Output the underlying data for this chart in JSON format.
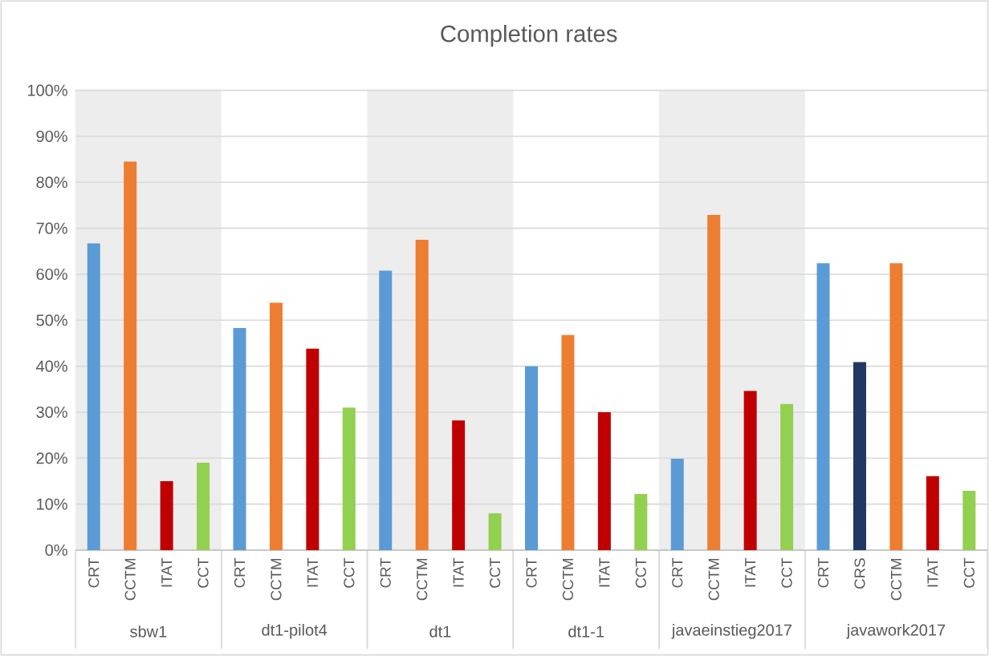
{
  "chart_data": {
    "type": "bar",
    "title": "Completion rates",
    "categories": [
      "CRT",
      "CCTM",
      "ITAT",
      "CCT",
      "CRT",
      "CCTM",
      "ITAT",
      "CCT",
      "CRT",
      "CCTM",
      "ITAT",
      "CCT",
      "CRT",
      "CCTM",
      "ITAT",
      "CCT",
      "CRT",
      "CCTM",
      "ITAT",
      "CCT",
      "CRT",
      "CRS",
      "CCTM",
      "ITAT",
      "CCT"
    ],
    "values": [
      66.7,
      84.5,
      15,
      19,
      48.3,
      53.8,
      43.8,
      31,
      60.8,
      67.5,
      28.2,
      8,
      40,
      46.8,
      30,
      12.2,
      19.9,
      72.9,
      34.6,
      31.8,
      62.4,
      40.9,
      62.4,
      16.1,
      12.9
    ],
    "colors": [
      "#5b9bd5",
      "#ed7d31",
      "#c00000",
      "#92d050",
      "#5b9bd5",
      "#ed7d31",
      "#c00000",
      "#92d050",
      "#5b9bd5",
      "#ed7d31",
      "#c00000",
      "#92d050",
      "#5b9bd5",
      "#ed7d31",
      "#c00000",
      "#92d050",
      "#5b9bd5",
      "#ed7d31",
      "#c00000",
      "#92d050",
      "#5b9bd5",
      "#1f3864",
      "#ed7d31",
      "#c00000",
      "#92d050"
    ],
    "ylim": [
      0,
      100
    ],
    "yticks": [
      {
        "value": 0,
        "label": "0%"
      },
      {
        "value": 10,
        "label": "10%"
      },
      {
        "value": 20,
        "label": "20%"
      },
      {
        "value": 30,
        "label": "30%"
      },
      {
        "value": 40,
        "label": "40%"
      },
      {
        "value": 50,
        "label": "50%"
      },
      {
        "value": 60,
        "label": "60%"
      },
      {
        "value": 70,
        "label": "70%"
      },
      {
        "value": 80,
        "label": "80%"
      },
      {
        "value": 90,
        "label": "90%"
      },
      {
        "value": 100,
        "label": "100%"
      }
    ],
    "grid": "y",
    "annotations": [
      "sbw1",
      "dt1-pilot4",
      "dt1",
      "dt1-1",
      "javaeinstieg2017",
      "javawork2017"
    ]
  }
}
